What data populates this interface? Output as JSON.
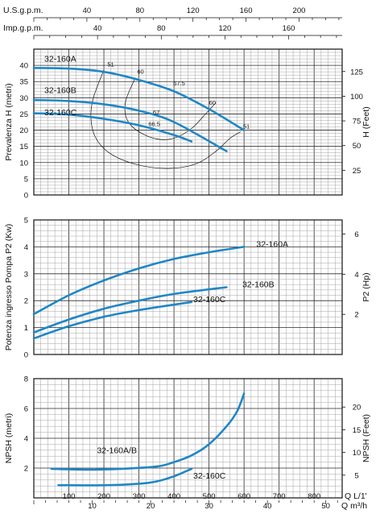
{
  "colors": {
    "curve": "#1f86c6",
    "grid": "#9a9a9a",
    "axis": "#111111"
  },
  "top_axes": [
    {
      "label": "U.S.g.p.m.",
      "ticks": [
        40,
        80,
        120,
        160,
        200
      ],
      "factor": 0.26417
    },
    {
      "label": "Imp.g.p.m.",
      "ticks": [
        40,
        80,
        120,
        160
      ],
      "factor": 0.21997
    }
  ],
  "bottom_axes": [
    {
      "label": "Q  L/1'",
      "ticks": [
        100,
        200,
        300,
        400,
        500,
        600,
        700,
        800
      ]
    },
    {
      "label": "Q  m³/h",
      "ticks": [
        10,
        20,
        30,
        40,
        50
      ],
      "factor": 16.6667
    }
  ],
  "chart_data": [
    {
      "type": "line",
      "id": "head",
      "xlim": [
        0,
        880
      ],
      "ylim": [
        0,
        45
      ],
      "ylabel": "Prevalenza H (metri)",
      "ylabel_right": "H (Feet)",
      "yticks": [
        0,
        5,
        10,
        15,
        20,
        25,
        30,
        35,
        40
      ],
      "yticks_right": [
        25,
        50,
        75,
        100,
        125
      ],
      "right_factor": 3.2808,
      "series": [
        {
          "name": "32-160A",
          "label_at": [
            30,
            41.1
          ],
          "x": [
            0,
            100,
            200,
            300,
            400,
            500,
            600
          ],
          "y": [
            39.2,
            39.0,
            38.0,
            35.5,
            32.0,
            26.5,
            20.0
          ]
        },
        {
          "name": "32-160B",
          "label_at": [
            30,
            31.4
          ],
          "x": [
            0,
            100,
            200,
            300,
            400,
            550
          ],
          "y": [
            29.3,
            29.0,
            28.0,
            26.0,
            22.5,
            13.5
          ]
        },
        {
          "name": "32-160C",
          "label_at": [
            30,
            24.6
          ],
          "x": [
            0,
            100,
            200,
            300,
            400,
            450
          ],
          "y": [
            25.2,
            24.8,
            23.5,
            21.5,
            18.5,
            16.5
          ]
        }
      ],
      "efficiency_lines": [
        {
          "label": "51",
          "label_at": [
            210,
            39.6
          ],
          "x": [
            200,
            170,
            163,
            175,
            215,
            290,
            380,
            460,
            520,
            560,
            590
          ],
          "y": [
            38.6,
            30,
            24,
            18,
            13,
            9.5,
            8.2,
            9.5,
            13.5,
            17.5,
            19.5
          ]
        },
        {
          "name": "60",
          "label": "60",
          "label_at": [
            295,
            37.4
          ],
          "x": [
            290,
            265,
            260,
            270,
            300,
            350,
            400,
            450,
            490,
            520
          ],
          "y": [
            36.2,
            30,
            26,
            22.5,
            19.5,
            17.3,
            17.5,
            20.5,
            25,
            28.5
          ]
        },
        {
          "label": "67.5",
          "label_at": [
            398,
            33.8
          ]
        },
        {
          "label": "67",
          "label_at": [
            340,
            24.8
          ]
        },
        {
          "label": "66.5",
          "label_at": [
            327,
            21.2
          ]
        },
        {
          "label": "60",
          "label_at": [
            500,
            27.8
          ]
        },
        {
          "label": "51",
          "label_at": [
            597,
            20.5
          ]
        }
      ]
    },
    {
      "type": "line",
      "id": "power",
      "xlim": [
        0,
        880
      ],
      "ylim": [
        0,
        5
      ],
      "ylabel": "Potenza ingresso Pompa P2 (Kw)",
      "ylabel_right": "P2 (Hp)",
      "yticks": [
        0,
        1,
        2,
        3,
        4,
        5
      ],
      "yticks_right": [
        2,
        4,
        6
      ],
      "right_factor": 1.341,
      "series": [
        {
          "name": "32-160A",
          "label_at": [
            635,
            4.0
          ],
          "x": [
            0,
            100,
            200,
            300,
            400,
            500,
            600
          ],
          "y": [
            1.5,
            2.2,
            2.75,
            3.2,
            3.55,
            3.8,
            4.0
          ]
        },
        {
          "name": "32-160B",
          "label_at": [
            595,
            2.5
          ],
          "x": [
            0,
            100,
            200,
            300,
            400,
            550
          ],
          "y": [
            0.82,
            1.3,
            1.7,
            2.0,
            2.25,
            2.5
          ]
        },
        {
          "name": "32-160C",
          "label_at": [
            455,
            1.95
          ],
          "x": [
            0,
            100,
            200,
            300,
            450
          ],
          "y": [
            0.6,
            1.05,
            1.4,
            1.65,
            1.95
          ]
        }
      ]
    },
    {
      "type": "line",
      "id": "npsh",
      "xlim": [
        0,
        880
      ],
      "ylim": [
        0,
        8
      ],
      "ylabel": "NPSH (metri)",
      "ylabel_right": "NPSH (Feet)",
      "yticks": [
        2,
        4,
        6,
        8
      ],
      "yticks_right": [
        5,
        10,
        15,
        20
      ],
      "right_factor": 3.2808,
      "series": [
        {
          "name": "32-160A/B",
          "label_at": [
            180,
            3.0
          ],
          "x": [
            50,
            150,
            250,
            350,
            400,
            450,
            500,
            550,
            580,
            600
          ],
          "y": [
            1.95,
            1.9,
            1.95,
            2.1,
            2.4,
            2.85,
            3.6,
            4.8,
            5.8,
            7.0
          ]
        },
        {
          "name": "32-160C",
          "label_at": [
            455,
            1.3
          ],
          "x": [
            70,
            200,
            300,
            350,
            400,
            450
          ],
          "y": [
            0.85,
            0.85,
            0.95,
            1.1,
            1.45,
            1.95
          ]
        }
      ]
    }
  ]
}
